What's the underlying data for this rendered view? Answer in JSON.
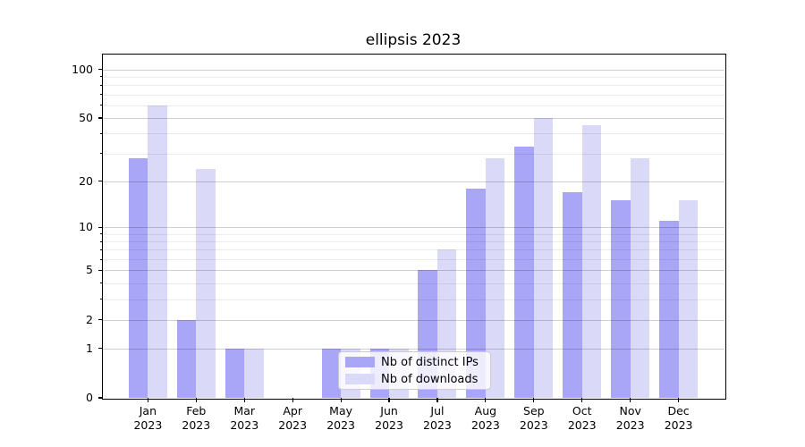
{
  "title": "ellipsis 2023",
  "chart_data": {
    "type": "bar",
    "title": "ellipsis 2023",
    "categories": [
      "Jan",
      "Feb",
      "Mar",
      "Apr",
      "May",
      "Jun",
      "Jul",
      "Aug",
      "Sep",
      "Oct",
      "Nov",
      "Dec"
    ],
    "category_year": "2023",
    "series": [
      {
        "name": "Nb of distinct IPs",
        "key": "ips",
        "color": "#a9a6f7",
        "values": [
          28,
          2,
          1,
          0,
          1,
          1,
          5,
          18,
          33,
          17,
          15,
          11
        ]
      },
      {
        "name": "Nb of downloads",
        "key": "downloads",
        "color": "#dad9f8",
        "values": [
          60,
          24,
          1,
          0,
          1,
          1,
          7,
          28,
          50,
          45,
          28,
          15
        ]
      }
    ],
    "yscale": "log1p",
    "ylim": [
      0,
      125
    ],
    "y_ticks_major": [
      0,
      1,
      2,
      5,
      10,
      20,
      50,
      100
    ],
    "y_ticks_minor": [
      3,
      4,
      6,
      7,
      8,
      9,
      30,
      40,
      60,
      70,
      80,
      90
    ],
    "grid": "both",
    "legend_position": "lower center"
  },
  "colors": {
    "major_grid": "rgba(0,0,0,0.19)",
    "minor_grid": "rgba(0,0,0,0.08)",
    "axis": "#000000"
  }
}
